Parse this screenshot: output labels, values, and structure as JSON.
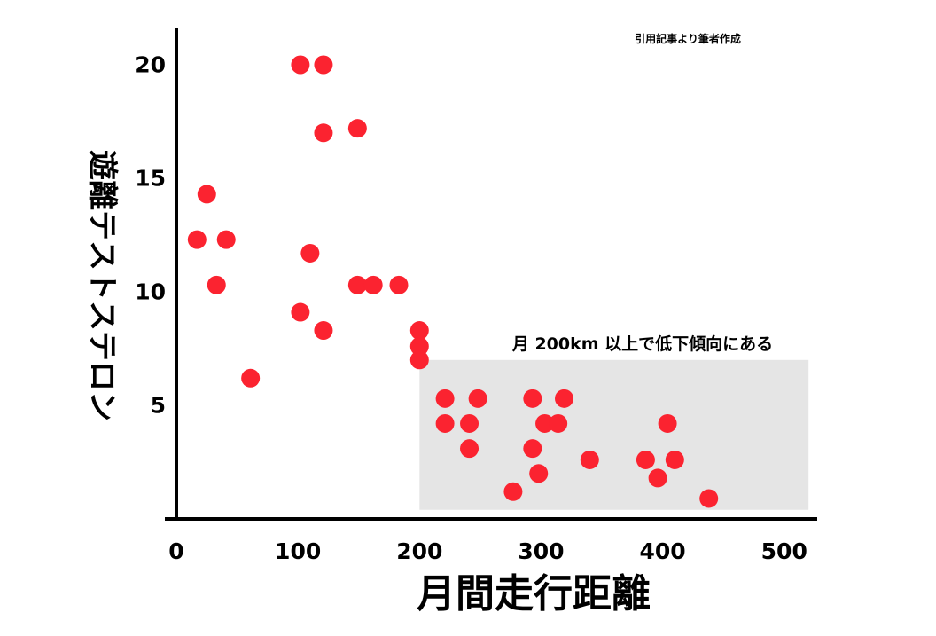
{
  "chart_data": {
    "type": "scatter",
    "xlabel": "月間走行距離",
    "ylabel": "遊離テストステロン",
    "source_note": "引用記事より筆者作成",
    "annotation": "月 200km 以上で低下傾向にある",
    "xlim": [
      0,
      520
    ],
    "ylim": [
      0,
      22
    ],
    "x_ticks": [
      "0",
      "100",
      "200",
      "300",
      "400",
      "500"
    ],
    "y_ticks": [
      "5",
      "10",
      "15",
      "20"
    ],
    "grid": false,
    "colors": {
      "point": "#fb2330",
      "highlight": "#e5e5e5",
      "axis": "#000000"
    },
    "highlight_region": {
      "x": [
        200,
        520
      ],
      "y": [
        0.4,
        7.0
      ]
    },
    "points": [
      {
        "x": 17,
        "y": 12.3
      },
      {
        "x": 25,
        "y": 14.3
      },
      {
        "x": 33,
        "y": 10.3
      },
      {
        "x": 41,
        "y": 12.3
      },
      {
        "x": 61,
        "y": 6.2
      },
      {
        "x": 102,
        "y": 20.0
      },
      {
        "x": 121,
        "y": 20.0
      },
      {
        "x": 121,
        "y": 17.0
      },
      {
        "x": 149,
        "y": 17.2
      },
      {
        "x": 110,
        "y": 11.7
      },
      {
        "x": 102,
        "y": 9.1
      },
      {
        "x": 121,
        "y": 8.3
      },
      {
        "x": 149,
        "y": 10.3
      },
      {
        "x": 162,
        "y": 10.3
      },
      {
        "x": 183,
        "y": 10.3
      },
      {
        "x": 200,
        "y": 8.3
      },
      {
        "x": 200,
        "y": 7.6
      },
      {
        "x": 200,
        "y": 7.0
      },
      {
        "x": 221,
        "y": 5.3
      },
      {
        "x": 221,
        "y": 4.2
      },
      {
        "x": 241,
        "y": 4.2
      },
      {
        "x": 241,
        "y": 3.1
      },
      {
        "x": 248,
        "y": 5.3
      },
      {
        "x": 277,
        "y": 1.2
      },
      {
        "x": 293,
        "y": 5.3
      },
      {
        "x": 293,
        "y": 3.1
      },
      {
        "x": 298,
        "y": 2.0
      },
      {
        "x": 303,
        "y": 4.2
      },
      {
        "x": 314,
        "y": 4.2
      },
      {
        "x": 319,
        "y": 5.3
      },
      {
        "x": 340,
        "y": 2.6
      },
      {
        "x": 386,
        "y": 2.6
      },
      {
        "x": 396,
        "y": 1.8
      },
      {
        "x": 404,
        "y": 4.2
      },
      {
        "x": 410,
        "y": 2.6
      },
      {
        "x": 438,
        "y": 0.9
      }
    ]
  }
}
